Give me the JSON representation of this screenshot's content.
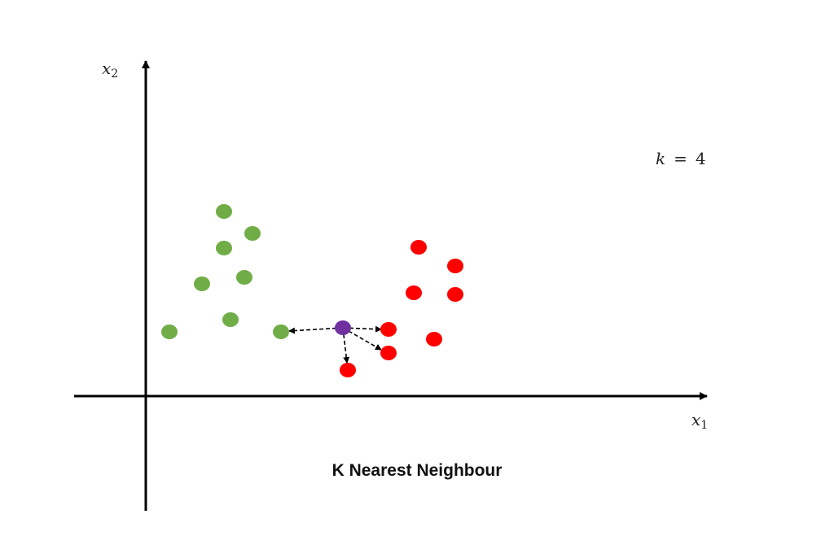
{
  "title": "K Nearest Neighbour",
  "k_label": {
    "variable": "k",
    "operator": "=",
    "value": "4"
  },
  "x_axis_label": {
    "symbol": "x",
    "subscript": "1"
  },
  "y_axis_label": {
    "symbol": "x",
    "subscript": "2"
  },
  "colors": {
    "class_a": "#70AD47",
    "class_b": "#FF0000",
    "query": "#7030A0",
    "axis": "#000000"
  },
  "classes": {
    "class_a": "green",
    "class_b": "red"
  },
  "k": 4,
  "nearest_neighbours": [
    "green",
    "red",
    "red",
    "red"
  ]
}
